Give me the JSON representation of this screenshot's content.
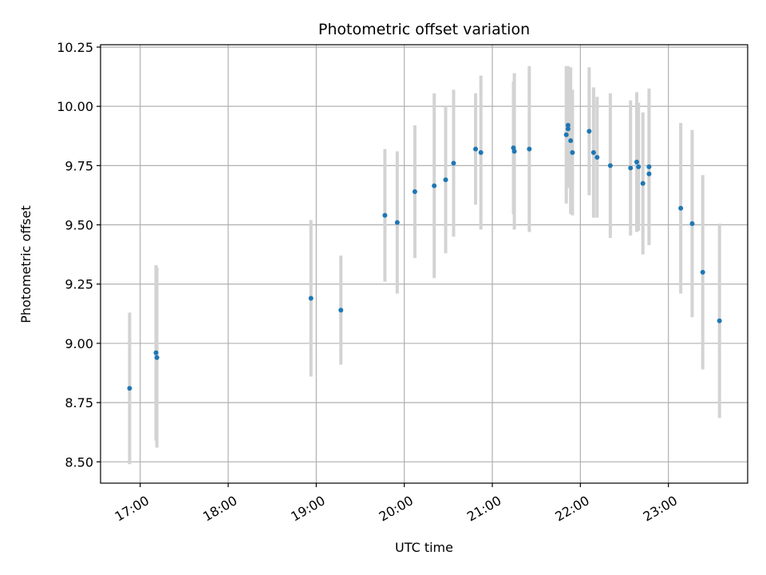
{
  "chart_data": {
    "type": "scatter",
    "title": "Photometric offset variation",
    "xlabel": "UTC time",
    "ylabel": "Photometric offset",
    "xlim": [
      16.55,
      23.9
    ],
    "ylim": [
      8.41,
      10.26
    ],
    "grid": true,
    "x_ticks": [
      {
        "value": 17,
        "label": "17:00"
      },
      {
        "value": 18,
        "label": "18:00"
      },
      {
        "value": 19,
        "label": "19:00"
      },
      {
        "value": 20,
        "label": "20:00"
      },
      {
        "value": 21,
        "label": "21:00"
      },
      {
        "value": 22,
        "label": "22:00"
      },
      {
        "value": 23,
        "label": "23:00"
      }
    ],
    "y_ticks": [
      {
        "value": 8.5,
        "label": "8.50"
      },
      {
        "value": 8.75,
        "label": "8.75"
      },
      {
        "value": 9.0,
        "label": "9.00"
      },
      {
        "value": 9.25,
        "label": "9.25"
      },
      {
        "value": 9.5,
        "label": "9.50"
      },
      {
        "value": 9.75,
        "label": "9.75"
      },
      {
        "value": 10.0,
        "label": "10.00"
      },
      {
        "value": 10.25,
        "label": "10.25"
      }
    ],
    "point_color": "#1f77b4",
    "error_color": "#d3d3d3",
    "series": [
      {
        "name": "offset",
        "points": [
          {
            "x": 16.88,
            "y": 8.81,
            "err": 0.32
          },
          {
            "x": 17.18,
            "y": 8.96,
            "err": 0.37
          },
          {
            "x": 17.19,
            "y": 8.94,
            "err": 0.38
          },
          {
            "x": 18.94,
            "y": 9.19,
            "err": 0.33
          },
          {
            "x": 19.28,
            "y": 9.14,
            "err": 0.23
          },
          {
            "x": 19.78,
            "y": 9.54,
            "err": 0.28
          },
          {
            "x": 19.92,
            "y": 9.51,
            "err": 0.3
          },
          {
            "x": 20.12,
            "y": 9.64,
            "err": 0.28
          },
          {
            "x": 20.34,
            "y": 9.665,
            "err": 0.39
          },
          {
            "x": 20.47,
            "y": 9.69,
            "err": 0.31
          },
          {
            "x": 20.56,
            "y": 9.76,
            "err": 0.31
          },
          {
            "x": 20.81,
            "y": 9.82,
            "err": 0.235
          },
          {
            "x": 20.87,
            "y": 9.805,
            "err": 0.325
          },
          {
            "x": 21.24,
            "y": 9.825,
            "err": 0.28
          },
          {
            "x": 21.25,
            "y": 9.81,
            "err": 0.33
          },
          {
            "x": 21.42,
            "y": 9.82,
            "err": 0.35
          },
          {
            "x": 21.84,
            "y": 9.88,
            "err": 0.29
          },
          {
            "x": 21.86,
            "y": 9.92,
            "err": 0.25
          },
          {
            "x": 21.86,
            "y": 9.905,
            "err": 0.25
          },
          {
            "x": 21.89,
            "y": 9.855,
            "err": 0.31
          },
          {
            "x": 21.91,
            "y": 9.805,
            "err": 0.265
          },
          {
            "x": 22.1,
            "y": 9.895,
            "err": 0.27
          },
          {
            "x": 22.15,
            "y": 9.805,
            "err": 0.275
          },
          {
            "x": 22.19,
            "y": 9.785,
            "err": 0.255
          },
          {
            "x": 22.34,
            "y": 9.75,
            "err": 0.305
          },
          {
            "x": 22.57,
            "y": 9.74,
            "err": 0.285
          },
          {
            "x": 22.64,
            "y": 9.765,
            "err": 0.295
          },
          {
            "x": 22.66,
            "y": 9.745,
            "err": 0.27
          },
          {
            "x": 22.71,
            "y": 9.675,
            "err": 0.3
          },
          {
            "x": 22.78,
            "y": 9.745,
            "err": 0.33
          },
          {
            "x": 22.78,
            "y": 9.715,
            "err": 0.3
          },
          {
            "x": 23.14,
            "y": 9.57,
            "err": 0.36
          },
          {
            "x": 23.27,
            "y": 9.505,
            "err": 0.395
          },
          {
            "x": 23.39,
            "y": 9.3,
            "err": 0.41
          },
          {
            "x": 23.58,
            "y": 9.095,
            "err": 0.41
          }
        ]
      }
    ]
  }
}
